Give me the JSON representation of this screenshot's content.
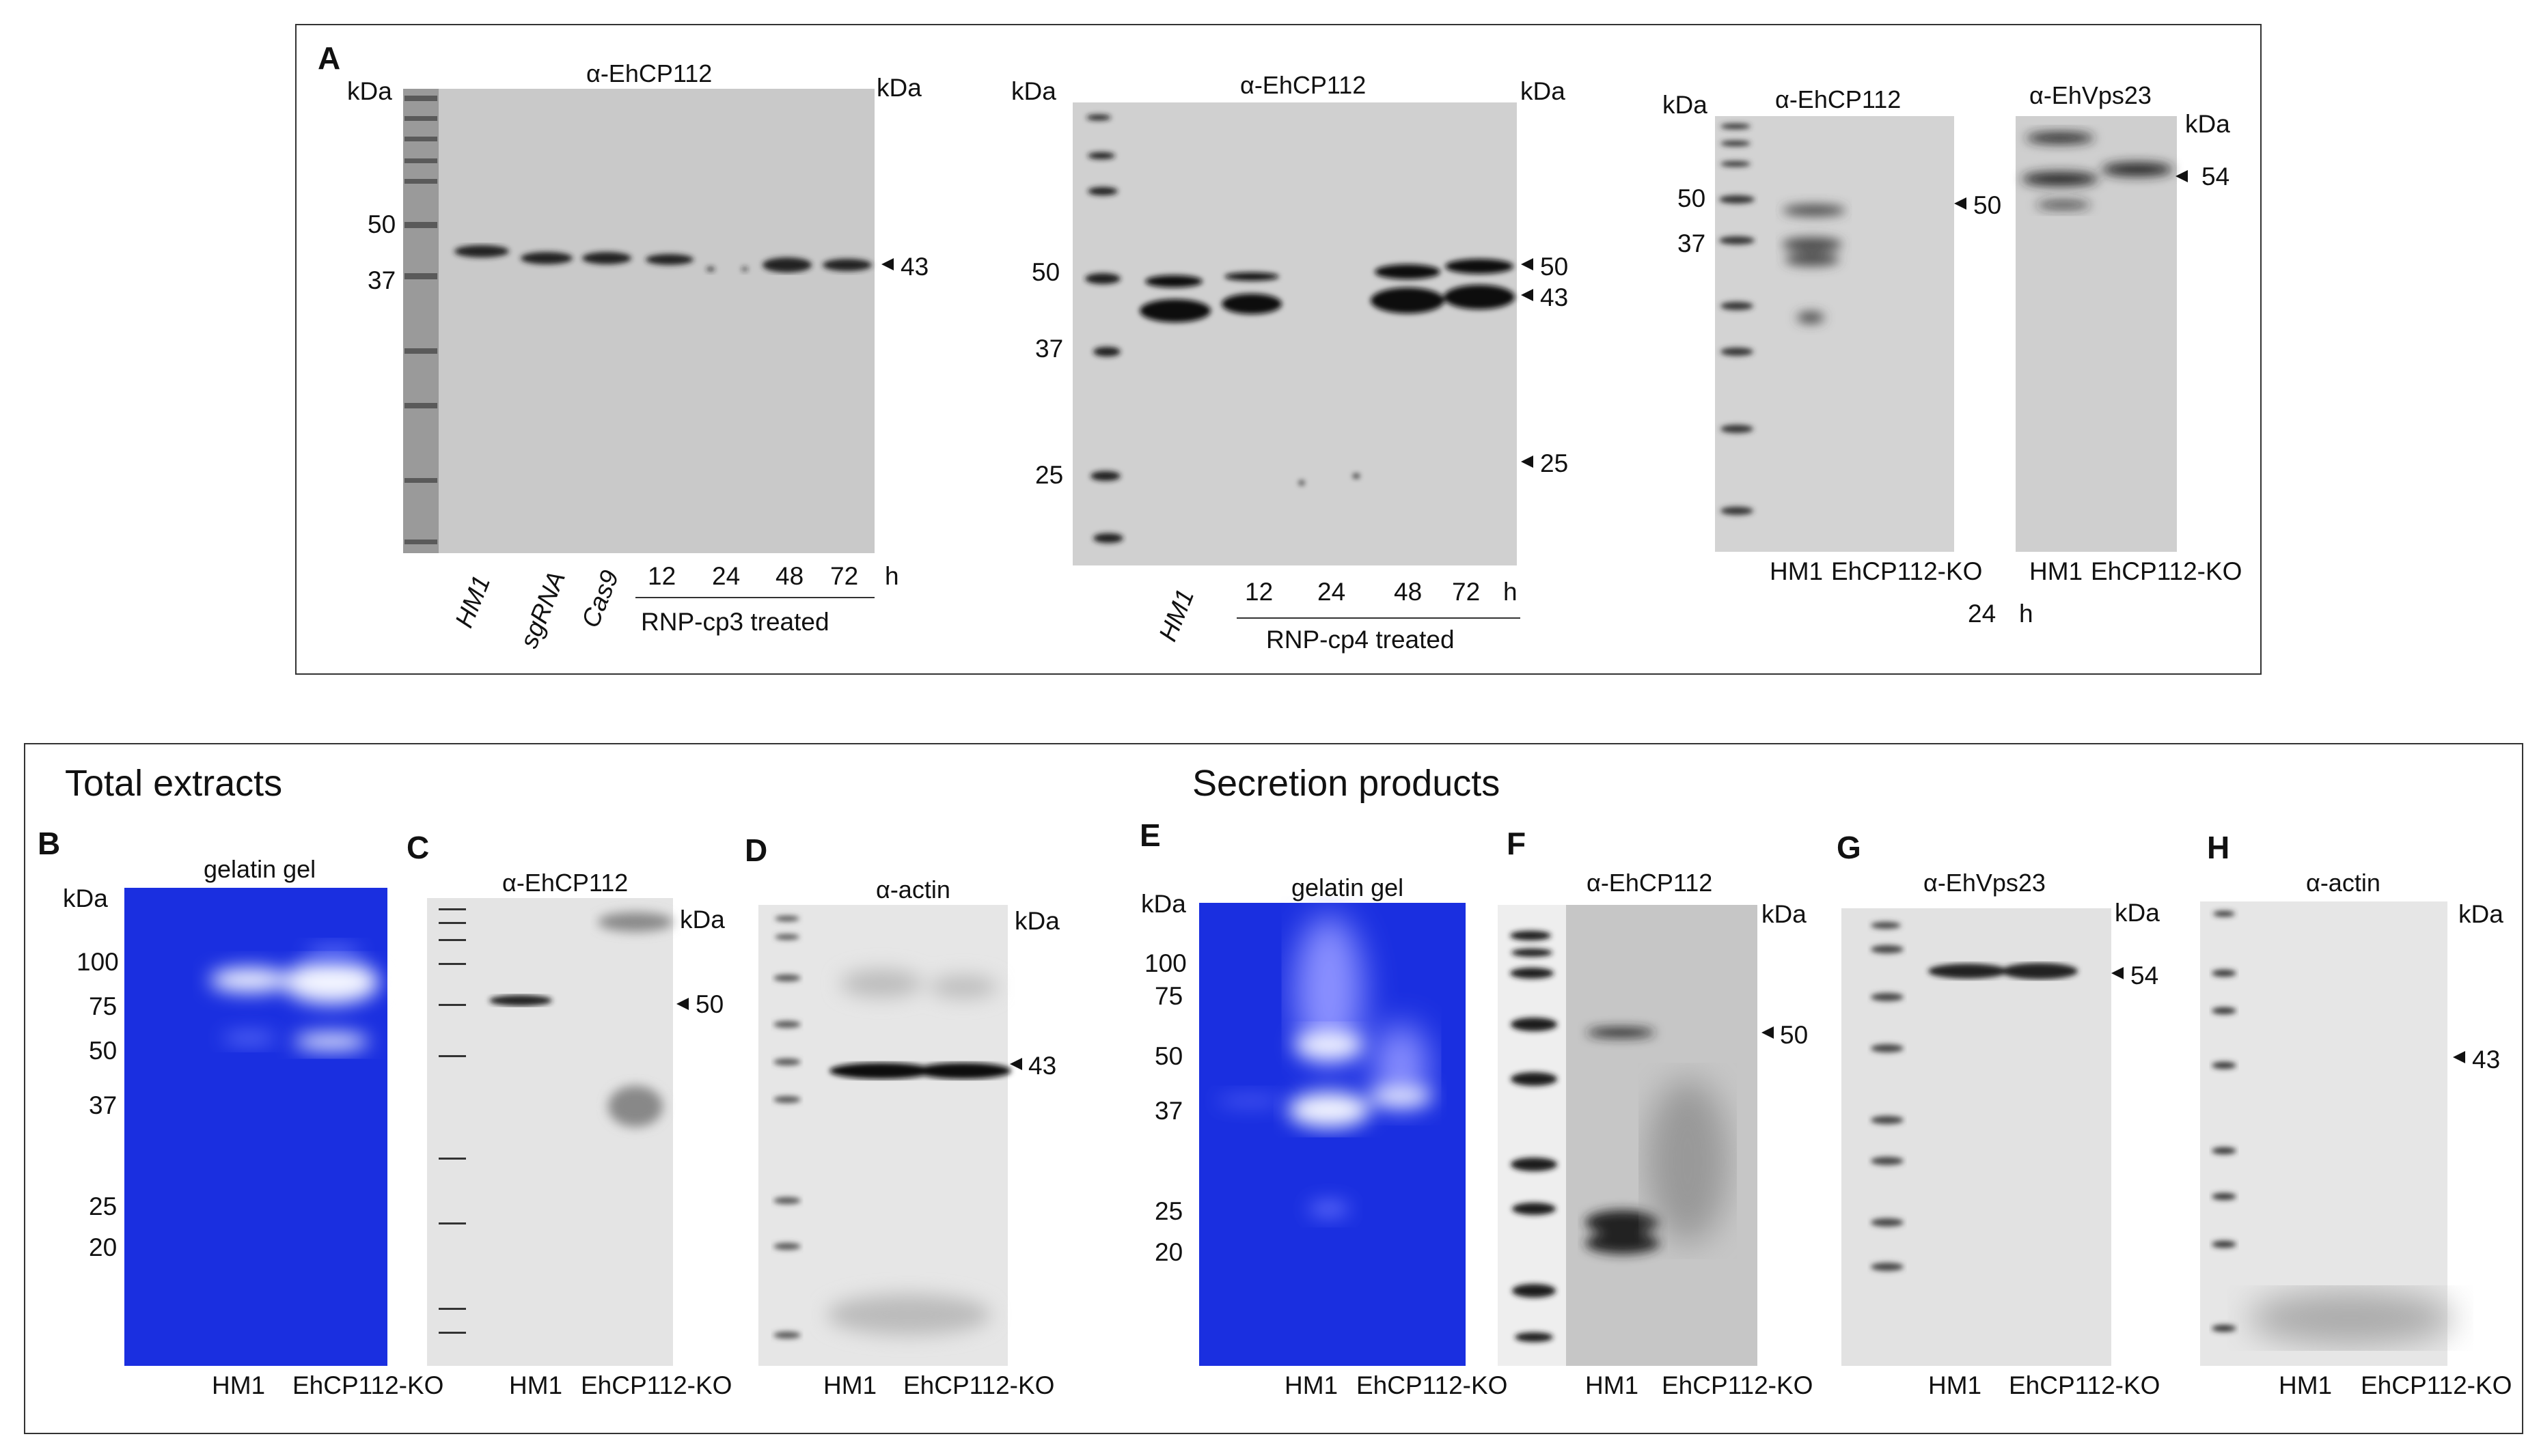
{
  "figure": {
    "panel_a": {
      "letter": "A",
      "blot1": {
        "title": "α-EhCP112",
        "kda_left": "kDa",
        "kda_right": "kDa",
        "markers": [
          "50",
          "37"
        ],
        "arrow_label": "43",
        "lanes": [
          "HM1",
          "sgRNA",
          "Cas9",
          "12",
          "24",
          "48",
          "72"
        ],
        "time_unit": "h",
        "treatment": "RNP-cp3 treated"
      },
      "blot2": {
        "title": "α-EhCP112",
        "kda_left": "kDa",
        "kda_right": "kDa",
        "markers": [
          "50",
          "37",
          "25"
        ],
        "arrow_labels": [
          "50",
          "43",
          "25"
        ],
        "lanes": [
          "HM1",
          "12",
          "24",
          "48",
          "72"
        ],
        "time_unit": "h",
        "treatment": "RNP-cp4 treated"
      },
      "blot3": {
        "title_left": "α-EhCP112",
        "title_right": "α-EhVps23",
        "kda_left": "kDa",
        "kda_right": "kDa",
        "markers": [
          "50",
          "37"
        ],
        "arrow_left": "50",
        "arrow_right": "54",
        "lanes_left": [
          "HM1",
          "EhCP112-KO"
        ],
        "lanes_right": [
          "HM1",
          "EhCP112-KO"
        ],
        "time_value": "24",
        "time_unit": "h"
      }
    },
    "section_total": "Total extracts",
    "section_secretion": "Secretion products",
    "panel_b": {
      "letter": "B",
      "title": "gelatin gel",
      "kda": "kDa",
      "markers": [
        "100",
        "75",
        "50",
        "37",
        "25",
        "20"
      ],
      "lanes": [
        "HM1",
        "EhCP112-KO"
      ]
    },
    "panel_c": {
      "letter": "C",
      "title": "α-EhCP112",
      "kda": "kDa",
      "arrow": "50",
      "lanes": [
        "HM1",
        "EhCP112-KO"
      ]
    },
    "panel_d": {
      "letter": "D",
      "title": "α-actin",
      "kda": "kDa",
      "arrow": "43",
      "lanes": [
        "HM1",
        "EhCP112-KO"
      ]
    },
    "panel_e": {
      "letter": "E",
      "title": "gelatin gel",
      "kda": "kDa",
      "markers": [
        "100",
        "75",
        "50",
        "37",
        "25",
        "20"
      ],
      "lanes": [
        "HM1",
        "EhCP112-KO"
      ]
    },
    "panel_f": {
      "letter": "F",
      "title": "α-EhCP112",
      "kda": "kDa",
      "arrow": "50",
      "lanes": [
        "HM1",
        "EhCP112-KO"
      ]
    },
    "panel_g": {
      "letter": "G",
      "title": "α-EhVps23",
      "kda": "kDa",
      "arrow": "54",
      "lanes": [
        "HM1",
        "EhCP112-KO"
      ]
    },
    "panel_h": {
      "letter": "H",
      "title": "α-actin",
      "kda": "kDa",
      "arrow": "43",
      "lanes": [
        "HM1",
        "EhCP112-KO"
      ]
    },
    "colors": {
      "frame": "#333333",
      "membrane_light": "#e2e2e2",
      "membrane_grey": "#c8c8c8",
      "band": "#1a1a1a",
      "gelatin_blue": "#1a2fe0",
      "gelatin_band": "#f2f4ff"
    }
  }
}
